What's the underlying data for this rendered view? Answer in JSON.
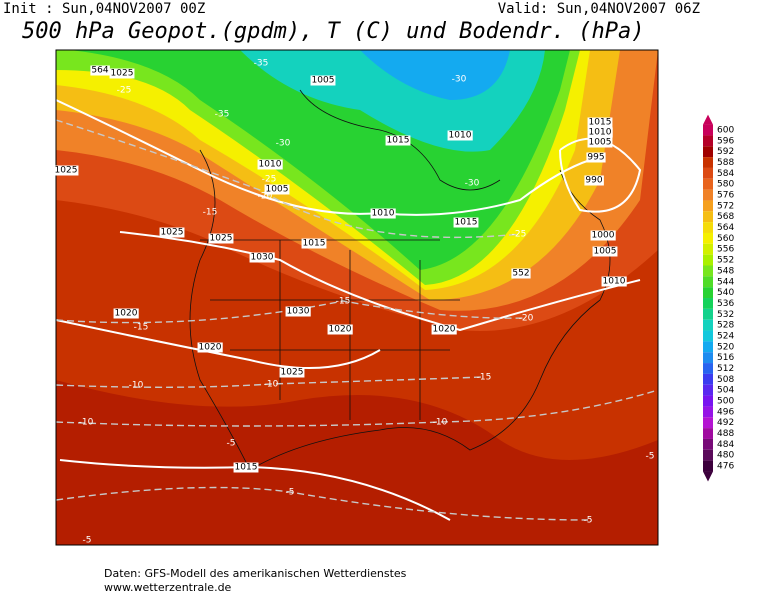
{
  "header": {
    "init": "Init : Sun,04NOV2007 00Z",
    "valid": "Valid: Sun,04NOV2007 06Z",
    "title": "500 hPa Geopot.(gpdm), T (C) und Bodendr. (hPa)"
  },
  "footer": {
    "source": "Daten: GFS-Modell des amerikanischen Wetterdienstes",
    "url": "www.wetterzentrale.de"
  },
  "colorbar": {
    "ticks": [
      600,
      596,
      592,
      588,
      584,
      580,
      576,
      572,
      568,
      564,
      560,
      556,
      552,
      548,
      544,
      540,
      536,
      532,
      528,
      524,
      520,
      516,
      512,
      508,
      504,
      500,
      496,
      492,
      488,
      484,
      480,
      476
    ],
    "colors": [
      "#c8005a",
      "#b40028",
      "#a00000",
      "#c83200",
      "#dc4a14",
      "#e8641e",
      "#f08228",
      "#f5a01e",
      "#f5be14",
      "#f5dc0a",
      "#f5f000",
      "#d2f000",
      "#aaf000",
      "#78e61e",
      "#50dc28",
      "#28d232",
      "#14d25a",
      "#14d28c",
      "#14d2be",
      "#14c8dc",
      "#14aaf0",
      "#1e8cf0",
      "#2864f0",
      "#3c3cf0",
      "#5a28f0",
      "#7814f0",
      "#9614e6",
      "#b414d2",
      "#a00aa0",
      "#780a78",
      "#5a0a5a",
      "#3c003c"
    ]
  },
  "map": {
    "height_labels": [
      "564",
      "552"
    ],
    "isobar_labels": [
      "1025",
      "1005",
      "1010",
      "1015",
      "1010",
      "1005",
      "1010",
      "1015",
      "1015",
      "1025",
      "1025",
      "1030",
      "1020",
      "1030",
      "1020",
      "1020",
      "1020",
      "1025",
      "1015",
      "1015",
      "1010",
      "1005",
      "995",
      "990",
      "1000",
      "1005",
      "1010",
      "1025"
    ],
    "temperature_labels": [
      "-35",
      "-25",
      "-35",
      "-30",
      "-30",
      "-30",
      "-25",
      "-20",
      "-15",
      "-25",
      "-20",
      "-15",
      "-15",
      "-10",
      "-10",
      "-15",
      "-10",
      "-10",
      "-5",
      "-5",
      "-5",
      "-5",
      "-5"
    ]
  }
}
